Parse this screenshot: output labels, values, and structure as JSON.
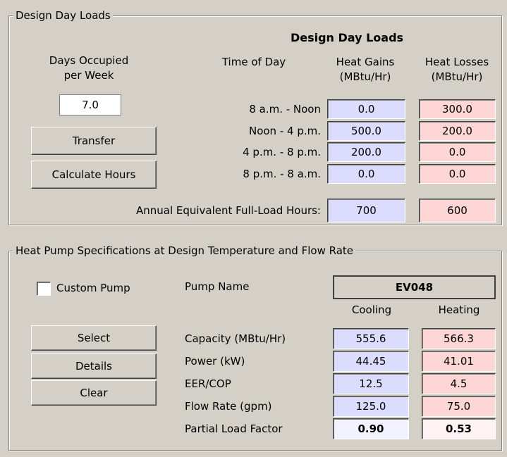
{
  "design_day_loads": {
    "group_title": "Design Day Loads",
    "heading": "Design Day Loads",
    "days_occupied_label": [
      "Days Occupied",
      "per Week"
    ],
    "days_occupied_value": "7.0",
    "buttons": [
      "Transfer",
      "Calculate Hours"
    ],
    "time_of_day_header": "Time of Day",
    "heat_gains_header": [
      "Heat Gains",
      "(MBtu/Hr)"
    ],
    "heat_losses_header": [
      "Heat Losses",
      "(MBtu/Hr)"
    ],
    "rows": [
      {
        "time": "8 a.m. - Noon",
        "gain": "0.0",
        "loss": "300.0"
      },
      {
        "time": "Noon - 4 p.m.",
        "gain": "500.0",
        "loss": "200.0"
      },
      {
        "time": "4 p.m. - 8 p.m.",
        "gain": "200.0",
        "loss": "0.0"
      },
      {
        "time": "8 p.m. - 8 a.m.",
        "gain": "0.0",
        "loss": "0.0"
      }
    ],
    "annual_label": "Annual Equivalent Full-Load Hours:",
    "annual_gain": "700",
    "annual_loss": "600"
  },
  "heat_pump": {
    "group_title": "Heat Pump Specifications at Design Temperature and Flow Rate",
    "custom_pump_label": "Custom Pump",
    "pump_name_label": "Pump Name",
    "pump_name": "EV048",
    "cooling_header": "Cooling",
    "heating_header": "Heating",
    "buttons": [
      "Select",
      "Details",
      "Clear"
    ],
    "rows": [
      {
        "label": "Capacity (MBtu/Hr)",
        "cooling": "555.6",
        "heating": "566.3"
      },
      {
        "label": "Power (kW)",
        "cooling": "44.45",
        "heating": "41.01"
      },
      {
        "label": "EER/COP",
        "cooling": "12.5",
        "heating": "4.5"
      },
      {
        "label": "Flow Rate (gpm)",
        "cooling": "125.0",
        "heating": "75.0"
      },
      {
        "label": "Partial Load Factor",
        "cooling": "0.90",
        "heating": "0.53"
      }
    ]
  }
}
